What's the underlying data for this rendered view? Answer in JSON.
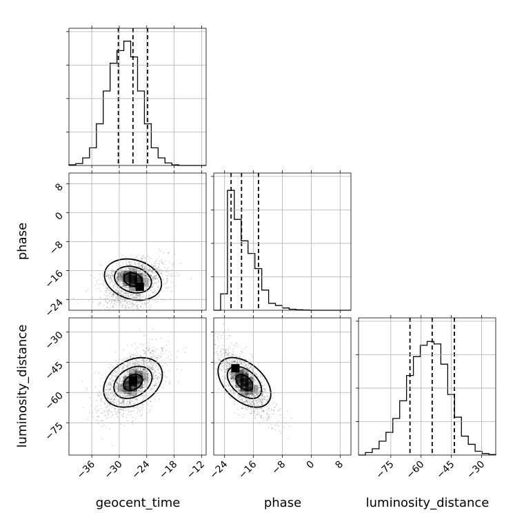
{
  "chart_data": {
    "type": "corner",
    "parameters": [
      {
        "name": "geocent_time",
        "label": "geocent_time",
        "range": [
          -41,
          -11
        ],
        "ticks": [
          -36,
          -30,
          -24,
          -18,
          -12
        ],
        "tick_labels": [
          "−36",
          "−30",
          "−24",
          "−18",
          "−12"
        ],
        "quantiles": [
          -30.2,
          -27.0,
          -23.8
        ],
        "hist_edges": [
          -41,
          -39.5,
          -38,
          -36.5,
          -35,
          -33.5,
          -32,
          -30.5,
          -29,
          -27.5,
          -26,
          -24.5,
          -23,
          -21.5,
          -20,
          -18.5,
          -17,
          -15.5,
          -14,
          -12.5,
          -11
        ],
        "hist_counts": [
          0.005,
          0.015,
          0.06,
          0.14,
          0.33,
          0.59,
          0.81,
          0.91,
          0.985,
          0.86,
          0.59,
          0.33,
          0.14,
          0.06,
          0.02,
          0.005,
          0,
          0,
          0,
          0
        ]
      },
      {
        "name": "phase",
        "label": "phase",
        "range": [
          -27,
          11
        ],
        "ticks": [
          -24,
          -16,
          -8,
          0,
          8
        ],
        "tick_labels": [
          "−24",
          "−16",
          "−8",
          "0",
          "8"
        ],
        "quantiles": [
          -22.2,
          -19.3,
          -14.6
        ],
        "hist_edges": [
          -27,
          -25.1,
          -23.2,
          -21.3,
          -19.4,
          -17.5,
          -15.6,
          -13.7,
          -11.8,
          -9.9,
          -8.0,
          -6.1,
          -4.2,
          -2.3,
          -0.4,
          1.5,
          3.4,
          5.3,
          7.2,
          9.1,
          11
        ],
        "hist_counts": [
          0,
          0.13,
          0.95,
          0.72,
          0.55,
          0.45,
          0.33,
          0.16,
          0.055,
          0.038,
          0.018,
          0.008,
          0.004,
          0.002,
          0,
          0,
          0,
          0,
          0,
          0
        ]
      },
      {
        "name": "luminosity_distance",
        "label": "luminosity_distance",
        "range": [
          -91,
          -23
        ],
        "ticks": [
          -75,
          -60,
          -45,
          -30
        ],
        "tick_labels": [
          "−75",
          "−60",
          "−45",
          "−30"
        ],
        "quantiles": [
          -65.5,
          -54.5,
          -43.5
        ],
        "hist_edges": [
          -91,
          -87.6,
          -84.2,
          -80.8,
          -77.4,
          -74.0,
          -70.6,
          -67.2,
          -63.8,
          -60.4,
          -57.0,
          -53.6,
          -50.2,
          -46.8,
          -43.4,
          -40.0,
          -36.6,
          -33.2,
          -29.8,
          -26.4,
          -23.0
        ],
        "hist_counts": [
          0,
          0.02,
          0.05,
          0.11,
          0.18,
          0.29,
          0.43,
          0.63,
          0.78,
          0.87,
          0.9,
          0.88,
          0.72,
          0.48,
          0.3,
          0.15,
          0.085,
          0.03,
          0.012,
          0.004
        ]
      }
    ],
    "axis_labels": {
      "x": [
        "geocent_time",
        "phase",
        "luminosity_distance"
      ],
      "y": [
        "phase",
        "luminosity_distance"
      ]
    },
    "pairs": [
      {
        "x": "geocent_time",
        "y": "phase",
        "mean": [
          -27,
          -18.5
        ],
        "sd": [
          3.6,
          3.8
        ],
        "rho": -0.35,
        "skew_y": 1.3,
        "density_peak": [
          -25.5,
          -20.5
        ]
      },
      {
        "x": "geocent_time",
        "y": "luminosity_distance",
        "mean": [
          -27,
          -55
        ],
        "sd": [
          3.5,
          8.5
        ],
        "rho": 0.55,
        "skew_y": 0,
        "density_peak": [
          -27,
          -54
        ]
      },
      {
        "x": "phase",
        "y": "luminosity_distance",
        "mean": [
          -18.5,
          -55
        ],
        "sd": [
          3.8,
          8.5
        ],
        "rho": -0.7,
        "skew_y": 0,
        "density_peak": [
          -21,
          -48
        ]
      }
    ],
    "grid": true,
    "legend": "none"
  }
}
